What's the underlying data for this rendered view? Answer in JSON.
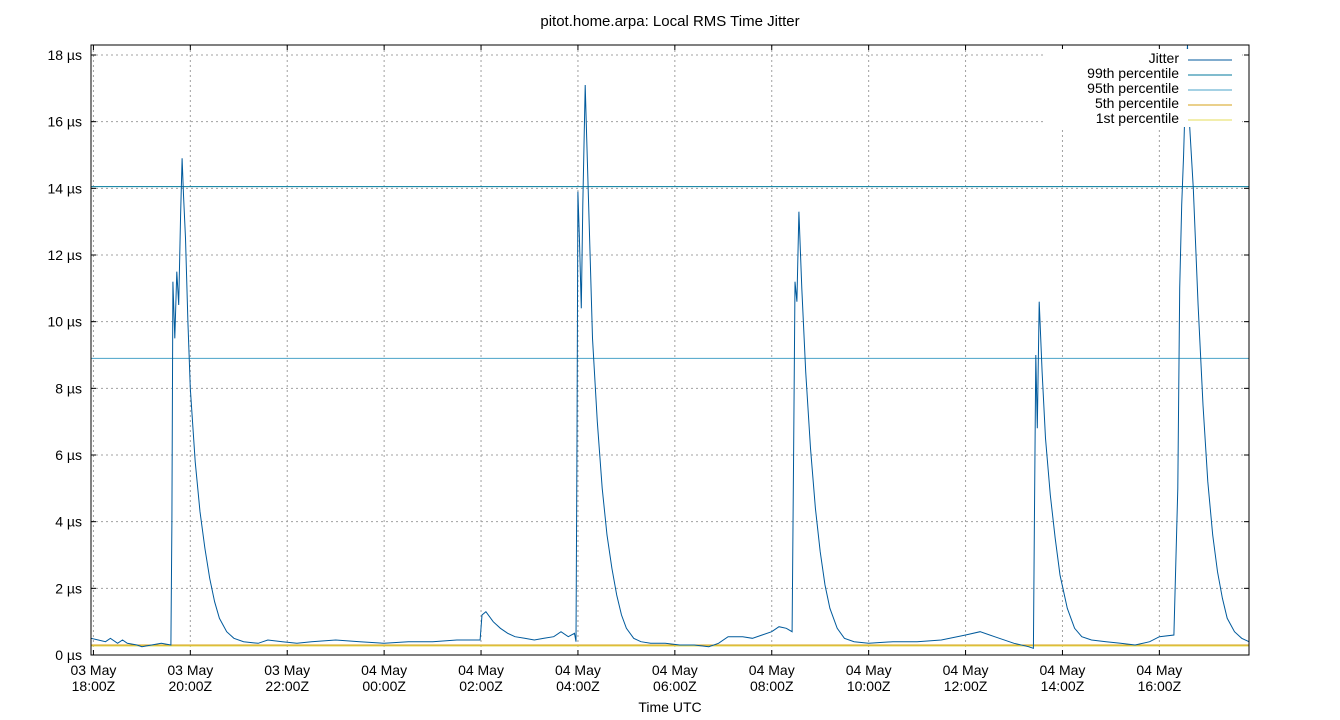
{
  "chart_data": {
    "type": "line",
    "title": "pitot.home.arpa: Local RMS Time Jitter",
    "xlabel": "Time UTC",
    "ylabel": "",
    "y_unit": "µs",
    "xlim_hours": [
      -0.05,
      23.85
    ],
    "ylim": [
      0,
      18.3
    ],
    "y_ticks": [
      0,
      2,
      4,
      6,
      8,
      10,
      12,
      14,
      16,
      18
    ],
    "y_tick_labels": [
      "0 µs",
      "2 µs",
      "4 µs",
      "6 µs",
      "8 µs",
      "10 µs",
      "12 µs",
      "14 µs",
      "16 µs",
      "18 µs"
    ],
    "x_ticks": [
      {
        "hour": 0,
        "line1": "03 May",
        "line2": "18:00Z"
      },
      {
        "hour": 2,
        "line1": "03 May",
        "line2": "20:00Z"
      },
      {
        "hour": 4,
        "line1": "03 May",
        "line2": "22:00Z"
      },
      {
        "hour": 6,
        "line1": "04 May",
        "line2": "00:00Z"
      },
      {
        "hour": 8,
        "line1": "04 May",
        "line2": "02:00Z"
      },
      {
        "hour": 10,
        "line1": "04 May",
        "line2": "04:00Z"
      },
      {
        "hour": 12,
        "line1": "04 May",
        "line2": "06:00Z"
      },
      {
        "hour": 14,
        "line1": "04 May",
        "line2": "08:00Z"
      },
      {
        "hour": 16,
        "line1": "04 May",
        "line2": "10:00Z"
      },
      {
        "hour": 18,
        "line1": "04 May",
        "line2": "12:00Z"
      },
      {
        "hour": 20,
        "line1": "04 May",
        "line2": "14:00Z"
      },
      {
        "hour": 22,
        "line1": "04 May",
        "line2": "16:00Z"
      }
    ],
    "grid": true,
    "legend_position": "top-right",
    "series": [
      {
        "name": "Jitter",
        "color": "#005a9c",
        "points": [
          [
            -0.05,
            0.5
          ],
          [
            0.1,
            0.45
          ],
          [
            0.25,
            0.4
          ],
          [
            0.35,
            0.5
          ],
          [
            0.5,
            0.35
          ],
          [
            0.6,
            0.45
          ],
          [
            0.7,
            0.35
          ],
          [
            0.9,
            0.3
          ],
          [
            1.0,
            0.25
          ],
          [
            1.2,
            0.3
          ],
          [
            1.4,
            0.35
          ],
          [
            1.6,
            0.3
          ],
          [
            1.62,
            4.0
          ],
          [
            1.64,
            11.2
          ],
          [
            1.68,
            9.5
          ],
          [
            1.72,
            11.5
          ],
          [
            1.76,
            10.5
          ],
          [
            1.8,
            13.2
          ],
          [
            1.83,
            14.9
          ],
          [
            1.86,
            13.8
          ],
          [
            1.9,
            12.5
          ],
          [
            1.95,
            10.0
          ],
          [
            2.0,
            8.0
          ],
          [
            2.1,
            5.8
          ],
          [
            2.2,
            4.3
          ],
          [
            2.3,
            3.2
          ],
          [
            2.4,
            2.3
          ],
          [
            2.5,
            1.6
          ],
          [
            2.6,
            1.1
          ],
          [
            2.75,
            0.7
          ],
          [
            2.9,
            0.5
          ],
          [
            3.1,
            0.4
          ],
          [
            3.4,
            0.35
          ],
          [
            3.6,
            0.45
          ],
          [
            3.9,
            0.4
          ],
          [
            4.2,
            0.35
          ],
          [
            4.5,
            0.4
          ],
          [
            5.0,
            0.45
          ],
          [
            5.5,
            0.4
          ],
          [
            6.0,
            0.35
          ],
          [
            6.5,
            0.4
          ],
          [
            7.0,
            0.4
          ],
          [
            7.5,
            0.45
          ],
          [
            7.98,
            0.45
          ],
          [
            8.02,
            1.2
          ],
          [
            8.1,
            1.3
          ],
          [
            8.25,
            1.0
          ],
          [
            8.4,
            0.8
          ],
          [
            8.55,
            0.65
          ],
          [
            8.7,
            0.55
          ],
          [
            8.9,
            0.5
          ],
          [
            9.1,
            0.45
          ],
          [
            9.3,
            0.5
          ],
          [
            9.5,
            0.55
          ],
          [
            9.65,
            0.7
          ],
          [
            9.8,
            0.55
          ],
          [
            9.93,
            0.65
          ],
          [
            9.96,
            0.4
          ],
          [
            9.98,
            6.5
          ],
          [
            10.0,
            13.9
          ],
          [
            10.03,
            12.5
          ],
          [
            10.07,
            10.4
          ],
          [
            10.1,
            13.5
          ],
          [
            10.15,
            17.1
          ],
          [
            10.18,
            15.5
          ],
          [
            10.25,
            12.0
          ],
          [
            10.3,
            9.5
          ],
          [
            10.4,
            7.0
          ],
          [
            10.5,
            5.0
          ],
          [
            10.6,
            3.6
          ],
          [
            10.7,
            2.6
          ],
          [
            10.8,
            1.8
          ],
          [
            10.9,
            1.2
          ],
          [
            11.0,
            0.8
          ],
          [
            11.15,
            0.5
          ],
          [
            11.3,
            0.4
          ],
          [
            11.5,
            0.35
          ],
          [
            11.8,
            0.35
          ],
          [
            12.1,
            0.3
          ],
          [
            12.4,
            0.3
          ],
          [
            12.7,
            0.25
          ],
          [
            12.9,
            0.35
          ],
          [
            13.1,
            0.55
          ],
          [
            13.4,
            0.55
          ],
          [
            13.6,
            0.5
          ],
          [
            13.8,
            0.6
          ],
          [
            14.0,
            0.7
          ],
          [
            14.15,
            0.85
          ],
          [
            14.3,
            0.8
          ],
          [
            14.42,
            0.7
          ],
          [
            14.45,
            6.0
          ],
          [
            14.48,
            11.2
          ],
          [
            14.52,
            10.6
          ],
          [
            14.56,
            13.3
          ],
          [
            14.62,
            11.0
          ],
          [
            14.7,
            8.5
          ],
          [
            14.8,
            6.2
          ],
          [
            14.9,
            4.4
          ],
          [
            15.0,
            3.1
          ],
          [
            15.1,
            2.1
          ],
          [
            15.2,
            1.4
          ],
          [
            15.35,
            0.8
          ],
          [
            15.5,
            0.5
          ],
          [
            15.7,
            0.4
          ],
          [
            16.0,
            0.35
          ],
          [
            16.5,
            0.4
          ],
          [
            17.0,
            0.4
          ],
          [
            17.5,
            0.45
          ],
          [
            18.0,
            0.6
          ],
          [
            18.3,
            0.7
          ],
          [
            18.6,
            0.55
          ],
          [
            19.0,
            0.35
          ],
          [
            19.3,
            0.25
          ],
          [
            19.4,
            0.2
          ],
          [
            19.42,
            4.0
          ],
          [
            19.45,
            9.0
          ],
          [
            19.48,
            6.8
          ],
          [
            19.52,
            10.6
          ],
          [
            19.58,
            8.5
          ],
          [
            19.65,
            6.5
          ],
          [
            19.75,
            4.8
          ],
          [
            19.85,
            3.5
          ],
          [
            19.95,
            2.4
          ],
          [
            20.1,
            1.4
          ],
          [
            20.25,
            0.8
          ],
          [
            20.4,
            0.55
          ],
          [
            20.6,
            0.45
          ],
          [
            20.9,
            0.4
          ],
          [
            21.2,
            0.35
          ],
          [
            21.5,
            0.3
          ],
          [
            21.8,
            0.4
          ],
          [
            22.0,
            0.55
          ],
          [
            22.3,
            0.6
          ],
          [
            22.38,
            5.0
          ],
          [
            22.42,
            11.0
          ],
          [
            22.46,
            13.5
          ],
          [
            22.5,
            15.0
          ],
          [
            22.55,
            17.5
          ],
          [
            22.58,
            18.3
          ],
          [
            22.62,
            16.0
          ],
          [
            22.7,
            14.0
          ],
          [
            22.8,
            10.5
          ],
          [
            22.9,
            7.5
          ],
          [
            23.0,
            5.2
          ],
          [
            23.1,
            3.6
          ],
          [
            23.2,
            2.5
          ],
          [
            23.3,
            1.7
          ],
          [
            23.4,
            1.1
          ],
          [
            23.55,
            0.7
          ],
          [
            23.7,
            0.5
          ],
          [
            23.85,
            0.4
          ]
        ]
      },
      {
        "name": "99th percentile",
        "color": "#00799c",
        "value": 14.05
      },
      {
        "name": "95th percentile",
        "color": "#4aa3c8",
        "value": 8.9
      },
      {
        "name": "5th percentile",
        "color": "#d4a017",
        "value": 0.3
      },
      {
        "name": "1st percentile",
        "color": "#e6dc5a",
        "value": 0.27
      }
    ]
  }
}
